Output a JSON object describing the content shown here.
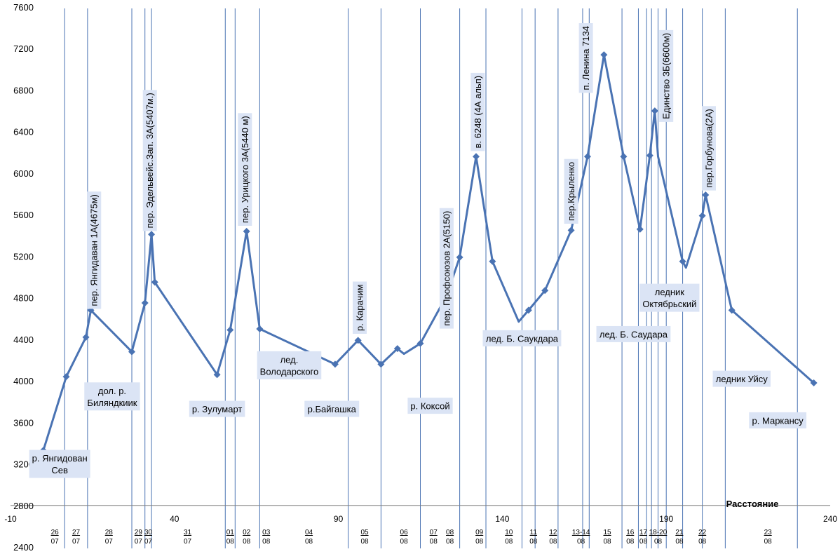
{
  "chart_data": {
    "type": "line",
    "title": "",
    "xlabel": "Расстояние",
    "ylabel": "",
    "xlim": [
      -10,
      240
    ],
    "ylim": [
      2400,
      7600
    ],
    "y_ticks": [
      2400,
      2800,
      3200,
      3600,
      4000,
      4400,
      4800,
      5200,
      5600,
      6000,
      6400,
      6800,
      7200,
      7600
    ],
    "x_ticks": [
      -10,
      40,
      90,
      140,
      190,
      240
    ],
    "grid": false,
    "legend": "none",
    "series": [
      {
        "points": [
          {
            "x": 0,
            "y": 3330
          },
          {
            "x": 7,
            "y": 4040
          },
          {
            "x": 13,
            "y": 4420
          },
          {
            "x": 14.5,
            "y": 4680
          },
          {
            "x": 27,
            "y": 4280
          },
          {
            "x": 31,
            "y": 4750
          },
          {
            "x": 33,
            "y": 5410
          },
          {
            "x": 34,
            "y": 4950
          },
          {
            "x": 53,
            "y": 4060
          },
          {
            "x": 57,
            "y": 4490
          },
          {
            "x": 62,
            "y": 5440
          },
          {
            "x": 66,
            "y": 4500
          },
          {
            "x": 89,
            "y": 4160
          },
          {
            "x": 96,
            "y": 4390
          },
          {
            "x": 103,
            "y": 4160
          },
          {
            "x": 108,
            "y": 4310
          },
          {
            "x": 110,
            "y": 4260
          },
          {
            "x": 115,
            "y": 4360
          },
          {
            "x": 123,
            "y": 4820
          },
          {
            "x": 127,
            "y": 5190
          },
          {
            "x": 132,
            "y": 6160
          },
          {
            "x": 137,
            "y": 5150
          },
          {
            "x": 145,
            "y": 4570
          },
          {
            "x": 148,
            "y": 4680
          },
          {
            "x": 153,
            "y": 4870
          },
          {
            "x": 161,
            "y": 5450
          },
          {
            "x": 166,
            "y": 6160
          },
          {
            "x": 171,
            "y": 7140
          },
          {
            "x": 177,
            "y": 6160
          },
          {
            "x": 182,
            "y": 5460
          },
          {
            "x": 185,
            "y": 6170
          },
          {
            "x": 186.5,
            "y": 6600
          },
          {
            "x": 187.5,
            "y": 6160
          },
          {
            "x": 195,
            "y": 5150
          },
          {
            "x": 196,
            "y": 5090
          },
          {
            "x": 201,
            "y": 5590
          },
          {
            "x": 202,
            "y": 5790
          },
          {
            "x": 210,
            "y": 4680
          },
          {
            "x": 235,
            "y": 3980
          }
        ],
        "markers": [
          {
            "x": 0,
            "y": 3330
          },
          {
            "x": 7,
            "y": 4040
          },
          {
            "x": 13,
            "y": 4420
          },
          {
            "x": 14.5,
            "y": 4680
          },
          {
            "x": 27,
            "y": 4280
          },
          {
            "x": 31,
            "y": 4750
          },
          {
            "x": 33,
            "y": 5410
          },
          {
            "x": 34,
            "y": 4950
          },
          {
            "x": 53,
            "y": 4060
          },
          {
            "x": 57,
            "y": 4490
          },
          {
            "x": 62,
            "y": 5440
          },
          {
            "x": 66,
            "y": 4500
          },
          {
            "x": 89,
            "y": 4160
          },
          {
            "x": 96,
            "y": 4390
          },
          {
            "x": 103,
            "y": 4160
          },
          {
            "x": 108,
            "y": 4310
          },
          {
            "x": 115,
            "y": 4360
          },
          {
            "x": 127,
            "y": 5190
          },
          {
            "x": 132,
            "y": 6160
          },
          {
            "x": 137,
            "y": 5150
          },
          {
            "x": 148,
            "y": 4680
          },
          {
            "x": 153,
            "y": 4870
          },
          {
            "x": 161,
            "y": 5450
          },
          {
            "x": 166,
            "y": 6160
          },
          {
            "x": 171,
            "y": 7140
          },
          {
            "x": 177,
            "y": 6160
          },
          {
            "x": 182,
            "y": 5460
          },
          {
            "x": 185,
            "y": 6170
          },
          {
            "x": 186.5,
            "y": 6600
          },
          {
            "x": 195,
            "y": 5150
          },
          {
            "x": 201,
            "y": 5590
          },
          {
            "x": 202,
            "y": 5790
          },
          {
            "x": 210,
            "y": 4680
          },
          {
            "x": 235,
            "y": 3980
          }
        ]
      }
    ],
    "day_lines_x": [
      6.5,
      13.5,
      27,
      31,
      33,
      55.5,
      58.5,
      66,
      93,
      103,
      115,
      127,
      135,
      146,
      150,
      157,
      164.5,
      166.5,
      176.5,
      181.5,
      184,
      185.5,
      187.5,
      190,
      195,
      201,
      208,
      230
    ],
    "dates": [
      {
        "x": 3.5,
        "day": "26",
        "month": "07"
      },
      {
        "x": 10,
        "day": "27",
        "month": "07"
      },
      {
        "x": 20,
        "day": "28",
        "month": "07"
      },
      {
        "x": 29,
        "day": "29",
        "month": "07"
      },
      {
        "x": 32,
        "day": "30",
        "month": "07"
      },
      {
        "x": 44,
        "day": "31",
        "month": "07"
      },
      {
        "x": 57,
        "day": "01",
        "month": "08"
      },
      {
        "x": 62,
        "day": "02",
        "month": "08"
      },
      {
        "x": 68,
        "day": "03",
        "month": "08"
      },
      {
        "x": 81,
        "day": "04",
        "month": "08"
      },
      {
        "x": 98,
        "day": "05",
        "month": "08"
      },
      {
        "x": 110,
        "day": "06",
        "month": "08"
      },
      {
        "x": 119,
        "day": "07",
        "month": "08"
      },
      {
        "x": 124,
        "day": "08",
        "month": "08"
      },
      {
        "x": 133,
        "day": "09",
        "month": "08"
      },
      {
        "x": 142,
        "day": "10",
        "month": "08"
      },
      {
        "x": 149.5,
        "day": "11",
        "month": "08"
      },
      {
        "x": 155.5,
        "day": "12",
        "month": "08"
      },
      {
        "x": 164,
        "day": "13-14",
        "month": "08"
      },
      {
        "x": 172,
        "day": "15",
        "month": "08"
      },
      {
        "x": 179,
        "day": "16",
        "month": "08"
      },
      {
        "x": 183,
        "day": "17",
        "month": "08"
      },
      {
        "x": 187.5,
        "day": "18-20",
        "month": "08"
      },
      {
        "x": 194,
        "day": "21",
        "month": "08"
      },
      {
        "x": 201,
        "day": "22",
        "month": "08"
      },
      {
        "x": 221,
        "day": "23",
        "month": "08"
      }
    ],
    "annotations_horizontal": [
      {
        "lines": [
          "р. Янгидован",
          "Сев"
        ],
        "x": 5,
        "y": 3200
      },
      {
        "lines": [
          "дол. р.",
          "Биляндкиик"
        ],
        "x": 21,
        "y": 3850
      },
      {
        "lines": [
          "р. Зулумарт"
        ],
        "x": 53,
        "y": 3730
      },
      {
        "lines": [
          "лед.",
          "Володарского"
        ],
        "x": 75,
        "y": 4150
      },
      {
        "lines": [
          "р.Байгашка"
        ],
        "x": 88,
        "y": 3730
      },
      {
        "lines": [
          "р. Коксой"
        ],
        "x": 118,
        "y": 3760
      },
      {
        "lines": [
          "лед.  Б. Саукдара"
        ],
        "x": 146,
        "y": 4410
      },
      {
        "lines": [
          "лед. Б. Саудара"
        ],
        "x": 180,
        "y": 4450
      },
      {
        "lines": [
          "ледник",
          "Октябрьский"
        ],
        "x": 191,
        "y": 4800
      },
      {
        "lines": [
          "ледник Уйсу"
        ],
        "x": 213,
        "y": 4020
      },
      {
        "lines": [
          "р. Маркансу"
        ],
        "x": 224,
        "y": 3620
      }
    ],
    "annotations_vertical": [
      {
        "text": "пер. Янгидаван 1А(4675м)",
        "x": 15.5,
        "y": 4720
      },
      {
        "text": "пер. Эдельвейс.Зап. 3А(5407м.)",
        "x": 32.5,
        "y": 5470
      },
      {
        "text": "пер. Урицкого 3А(5440 м)",
        "x": 61.5,
        "y": 5520
      },
      {
        "text": "р. Карачим",
        "x": 96.5,
        "y": 4480
      },
      {
        "text": "пер. Профсоюзов 2А(5150)",
        "x": 123,
        "y": 4530
      },
      {
        "text": "в. 6248 (4А альп)",
        "x": 132.5,
        "y": 6240
      },
      {
        "text": "пер.Крыленко",
        "x": 161,
        "y": 5540
      },
      {
        "text": "п. Ленина 7134",
        "x": 165.5,
        "y": 6800
      },
      {
        "text": "Единство 3Б(6600м)",
        "x": 190,
        "y": 6520
      },
      {
        "text": "пер.Горбунова(2А)",
        "x": 203,
        "y": 5860
      }
    ]
  }
}
